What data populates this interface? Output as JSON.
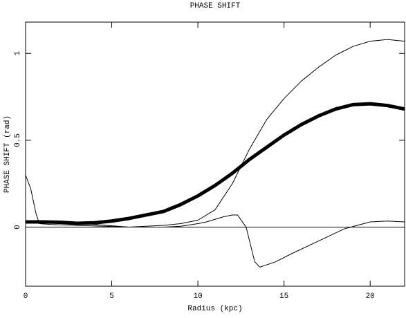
{
  "chart_data": {
    "type": "line",
    "title": "PHASE SHIFT",
    "xlabel": "Radius (kpc)",
    "ylabel": "PHASE SHIFT (rad)",
    "xlim": [
      0,
      22
    ],
    "ylim": [
      -0.34,
      1.18
    ],
    "xticks": [
      0,
      5,
      10,
      15,
      20
    ],
    "yticks": [
      0,
      0.5,
      1
    ],
    "hline": 0,
    "series": [
      {
        "color": "#000000",
        "width": 5,
        "x": [
          0,
          1,
          2,
          3,
          4,
          5,
          6,
          7,
          8,
          9,
          10,
          11,
          12,
          13,
          14,
          15,
          16,
          17,
          18,
          19,
          20,
          21,
          22
        ],
        "values": [
          0.03,
          0.03,
          0.028,
          0.022,
          0.025,
          0.035,
          0.05,
          0.07,
          0.09,
          0.13,
          0.18,
          0.24,
          0.31,
          0.39,
          0.46,
          0.53,
          0.59,
          0.64,
          0.68,
          0.705,
          0.71,
          0.7,
          0.68
        ]
      },
      {
        "color": "#000000",
        "width": 1,
        "x": [
          0,
          0.3,
          0.6,
          0.8,
          1.5,
          3,
          6,
          8,
          9,
          10,
          11,
          12,
          13,
          14,
          15,
          16,
          17,
          18,
          19,
          20,
          21,
          22
        ],
        "values": [
          0.3,
          0.22,
          0.08,
          0.02,
          0.015,
          0.01,
          0,
          0.01,
          0.02,
          0.04,
          0.1,
          0.25,
          0.45,
          0.62,
          0.74,
          0.84,
          0.92,
          0.99,
          1.04,
          1.07,
          1.08,
          1.07
        ]
      },
      {
        "color": "#000000",
        "width": 1,
        "x": [
          0,
          2,
          4,
          6,
          8,
          9,
          10,
          10.5,
          11.5,
          12,
          12.3,
          12.8,
          13.3,
          13.6,
          14.5,
          15.5,
          17,
          18.5,
          20,
          21,
          22
        ],
        "values": [
          0.03,
          0.025,
          0.015,
          0,
          0,
          0.005,
          0.02,
          0.03,
          0.06,
          0.07,
          0.07,
          0,
          -0.2,
          -0.23,
          -0.2,
          -0.15,
          -0.08,
          -0.01,
          0.03,
          0.035,
          0.03
        ]
      }
    ]
  }
}
